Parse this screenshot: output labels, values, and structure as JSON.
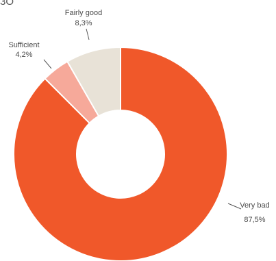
{
  "page": {
    "title_fragment": "3O"
  },
  "chart_data": {
    "type": "pie",
    "donut": true,
    "categories": [
      "Very bad",
      "Sufficient",
      "Fairly good"
    ],
    "values": [
      87.5,
      4.2,
      8.3
    ],
    "value_labels": [
      "87,5%",
      "4,2%",
      "8,3%"
    ],
    "colors": [
      "#f0582a",
      "#f6a99a",
      "#e8e2d7"
    ],
    "start": "12 o'clock",
    "direction": "clockwise",
    "legend": "none"
  }
}
